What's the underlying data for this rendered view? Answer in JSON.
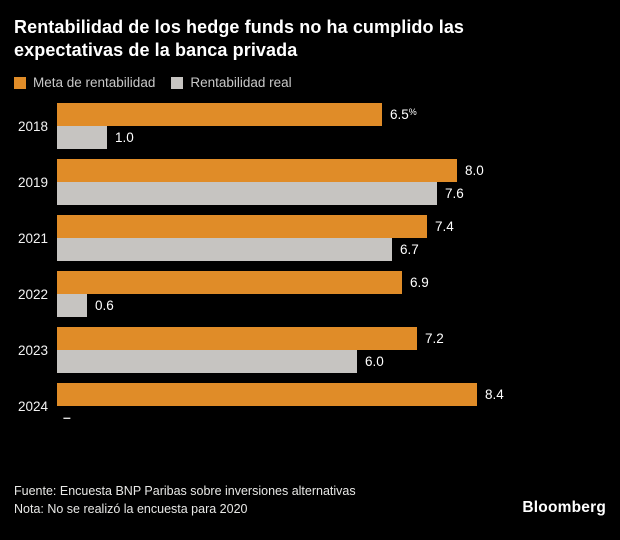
{
  "title_lines": [
    "Rentabilidad de los hedge funds no ha cumplido las",
    "expectativas de la banca privada"
  ],
  "legend": [
    {
      "label": "Meta de rentabilidad",
      "color": "#E08C28"
    },
    {
      "label": "Rentabilidad real",
      "color": "#C6C4C1"
    }
  ],
  "chart_data": {
    "type": "bar",
    "orientation": "horizontal",
    "title": "Rentabilidad de los hedge funds no ha cumplido las expectativas de la banca privada",
    "categories": [
      "2018",
      "2019",
      "2021",
      "2022",
      "2023",
      "2024"
    ],
    "series": [
      {
        "name": "Meta de rentabilidad",
        "color": "#E08C28",
        "values": [
          6.5,
          8.0,
          7.4,
          6.9,
          7.2,
          8.4
        ],
        "labels": [
          "6.5%",
          "8.0",
          "7.4",
          "6.9",
          "7.2",
          "8.4"
        ]
      },
      {
        "name": "Rentabilidad real",
        "color": "#C6C4C1",
        "values": [
          1.0,
          7.6,
          6.7,
          0.6,
          6.0,
          null
        ],
        "labels": [
          "1.0",
          "7.6",
          "6.7",
          "0.6",
          "6.0",
          "–"
        ]
      }
    ],
    "unit": "%",
    "xlim": [
      0,
      10.5
    ],
    "grid": false,
    "legend_position": "top",
    "value_labels": "outside-end"
  },
  "footer": {
    "source": "Fuente: Encuesta BNP Paribas sobre inversiones alternativas",
    "note": "Nota: No se realizó la encuesta para 2020",
    "brand": "Bloomberg"
  }
}
